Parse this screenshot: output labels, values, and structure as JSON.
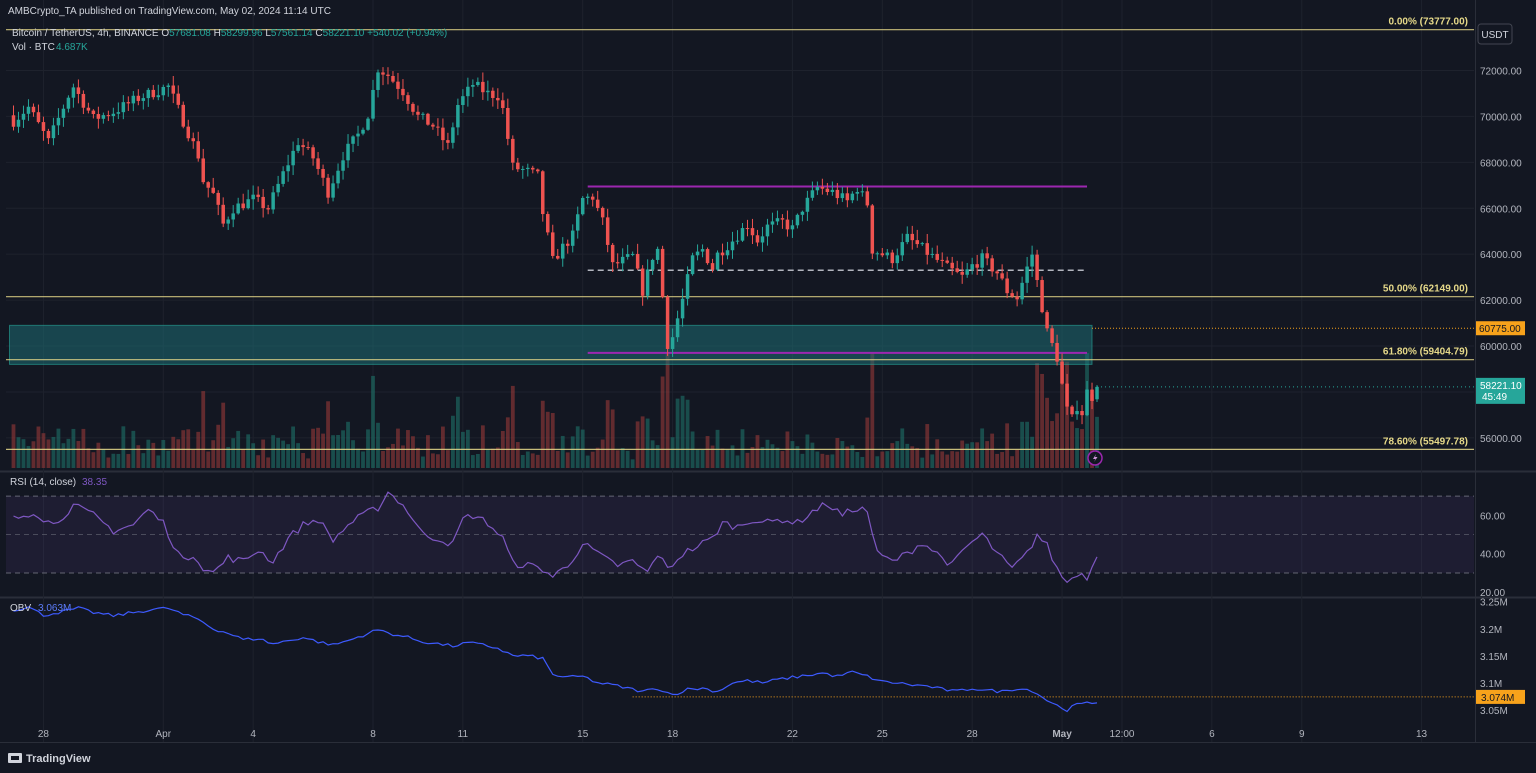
{
  "header": {
    "publisher": "AMBCrypto_TA published on TradingView.com, May 02, 2024 11:14 UTC",
    "symbol": "Bitcoin / TetherUS, 4h, BINANCE",
    "ohlc": [
      {
        "label": "O",
        "value": "57681.08"
      },
      {
        "label": "H",
        "value": "58299.96"
      },
      {
        "label": "L",
        "value": "57561.14"
      },
      {
        "label": "C",
        "value": "58221.10"
      }
    ],
    "change": "+540.02 (+0.94%)",
    "vol_label": "Vol · BTC",
    "vol_value": "4.687K",
    "currency": "USDT"
  },
  "footer": {
    "brand": "TradingView"
  },
  "colors": {
    "background": "#131722",
    "up": "#26a69a",
    "down": "#ef5350",
    "fib": "#e6d989",
    "range": "#9c27b0",
    "zone": "#1b5e66",
    "rsi": "#7e57c2",
    "obv": "#3d5afe",
    "price_tag": "#26a69a",
    "level_tag": "#f7a21b"
  },
  "chart_data": [
    {
      "type": "candlestick",
      "title": "",
      "price_scale": {
        "ylim": [
          54600,
          74200
        ],
        "ticks": [
          56000,
          58000,
          60000,
          62000,
          64000,
          66000,
          68000,
          70000,
          72000
        ]
      },
      "price_tick_labels": [
        "56000.00",
        "58000.00",
        "60000.00",
        "62000.00",
        "64000.00",
        "66000.00",
        "68000.00",
        "70000.00",
        "72000.00"
      ],
      "x_tick_labels": [
        {
          "label": "28",
          "index": 6
        },
        {
          "label": "Apr",
          "index": 30
        },
        {
          "label": "4",
          "index": 48
        },
        {
          "label": "8",
          "index": 72
        },
        {
          "label": "11",
          "index": 90
        },
        {
          "label": "15",
          "index": 114
        },
        {
          "label": "18",
          "index": 132
        },
        {
          "label": "22",
          "index": 156
        },
        {
          "label": "25",
          "index": 174
        },
        {
          "label": "28",
          "index": 192
        },
        {
          "label": "May",
          "index": 210
        },
        {
          "label": "12:00",
          "index": 222
        },
        {
          "label": "6",
          "index": 240
        },
        {
          "label": "9",
          "index": 258
        },
        {
          "label": "13",
          "index": 282
        }
      ],
      "x_range": [
        -1.5,
        292.5
      ],
      "close_path": [
        [
          0,
          69800
        ],
        [
          3,
          70400
        ],
        [
          7,
          68900
        ],
        [
          11,
          70900
        ],
        [
          12,
          71300
        ],
        [
          16,
          69900
        ],
        [
          20,
          70200
        ],
        [
          25,
          70800
        ],
        [
          31,
          71300
        ],
        [
          34,
          69800
        ],
        [
          37,
          68300
        ],
        [
          38,
          67200
        ],
        [
          40,
          66600
        ],
        [
          42,
          65300
        ],
        [
          44,
          66000
        ],
        [
          48,
          66400
        ],
        [
          51,
          66000
        ],
        [
          54,
          67500
        ],
        [
          57,
          68900
        ],
        [
          60,
          68200
        ],
        [
          63,
          66700
        ],
        [
          66,
          68300
        ],
        [
          69,
          69200
        ],
        [
          71,
          70100
        ],
        [
          73,
          72100
        ],
        [
          75,
          71800
        ],
        [
          78,
          71100
        ],
        [
          81,
          70000
        ],
        [
          84,
          69600
        ],
        [
          87,
          68700
        ],
        [
          89,
          70500
        ],
        [
          92,
          71400
        ],
        [
          95,
          71000
        ],
        [
          97,
          70900
        ],
        [
          98,
          70300
        ],
        [
          100,
          67800
        ],
        [
          103,
          67600
        ],
        [
          105,
          67400
        ],
        [
          106,
          65800
        ],
        [
          108,
          63700
        ],
        [
          110,
          64300
        ],
        [
          112,
          64800
        ],
        [
          114,
          66400
        ],
        [
          116,
          66500
        ],
        [
          118,
          65400
        ],
        [
          120,
          63500
        ],
        [
          124,
          63900
        ],
        [
          126,
          62400
        ],
        [
          128,
          63900
        ],
        [
          129,
          64200
        ],
        [
          131,
          60100
        ],
        [
          132,
          60400
        ],
        [
          134,
          62000
        ],
        [
          136,
          63800
        ],
        [
          138,
          64200
        ],
        [
          140,
          63400
        ],
        [
          141,
          64000
        ],
        [
          144,
          64600
        ],
        [
          147,
          65300
        ],
        [
          149,
          64600
        ],
        [
          151,
          65200
        ],
        [
          154,
          65400
        ],
        [
          156,
          65100
        ],
        [
          158,
          66000
        ],
        [
          161,
          66900
        ],
        [
          164,
          66700
        ],
        [
          167,
          66300
        ],
        [
          169,
          66900
        ],
        [
          171,
          66200
        ],
        [
          172,
          64200
        ],
        [
          176,
          63800
        ],
        [
          179,
          64700
        ],
        [
          181,
          64400
        ],
        [
          184,
          63900
        ],
        [
          187,
          63400
        ],
        [
          190,
          63000
        ],
        [
          192,
          63500
        ],
        [
          194,
          63800
        ],
        [
          197,
          63200
        ],
        [
          199,
          62400
        ],
        [
          201,
          62100
        ],
        [
          203,
          63400
        ],
        [
          204,
          64000
        ],
        [
          205,
          62800
        ],
        [
          207,
          60600
        ],
        [
          209,
          59500
        ],
        [
          210,
          58300
        ],
        [
          211,
          57200
        ],
        [
          212,
          56800
        ],
        [
          213,
          57400
        ],
        [
          214,
          57100
        ],
        [
          215,
          58000
        ],
        [
          216,
          57800
        ],
        [
          217,
          58221
        ]
      ],
      "last_price": {
        "label": "58221.10",
        "countdown": "45:49"
      },
      "fib_levels": [
        {
          "label": "0.00% (73777.00)",
          "value": 73777.0
        },
        {
          "label": "50.00% (62149.00)",
          "value": 62149.0
        },
        {
          "label": "61.80% (59404.79)",
          "value": 59404.79
        },
        {
          "label": "78.60% (55497.78)",
          "value": 55497.78
        }
      ],
      "level_tag": {
        "label": "60775.00",
        "value": 60775.0
      },
      "range_box": {
        "top": 66950,
        "mid": 63300,
        "bottom": 59700,
        "start_index": 115,
        "end_index": 215
      },
      "support_zone": {
        "top": 60900,
        "bottom": 59200,
        "start_index": 0,
        "end_index": 216
      },
      "volume": {
        "scale": "relative",
        "last": 4.687
      }
    },
    {
      "type": "line",
      "title": "",
      "name": "RSI (14, close)",
      "value_label": "38.35",
      "ylim": [
        18,
        82
      ],
      "ticks": [
        20,
        40,
        60
      ],
      "tick_labels": [
        "20.00",
        "40.00",
        "60.00"
      ],
      "bands": [
        30,
        50,
        70
      ],
      "path": [
        [
          0,
          58
        ],
        [
          4,
          62
        ],
        [
          8,
          55
        ],
        [
          12,
          65
        ],
        [
          16,
          60
        ],
        [
          20,
          52
        ],
        [
          24,
          55
        ],
        [
          27,
          63
        ],
        [
          30,
          56
        ],
        [
          32,
          45
        ],
        [
          34,
          36
        ],
        [
          36,
          40
        ],
        [
          38,
          33
        ],
        [
          40,
          30
        ],
        [
          43,
          38
        ],
        [
          46,
          36
        ],
        [
          49,
          42
        ],
        [
          52,
          36
        ],
        [
          55,
          48
        ],
        [
          58,
          55
        ],
        [
          61,
          58
        ],
        [
          64,
          47
        ],
        [
          67,
          55
        ],
        [
          70,
          60
        ],
        [
          73,
          64
        ],
        [
          75,
          72
        ],
        [
          77,
          68
        ],
        [
          79,
          62
        ],
        [
          82,
          50
        ],
        [
          85,
          48
        ],
        [
          88,
          45
        ],
        [
          90,
          58
        ],
        [
          92,
          60
        ],
        [
          95,
          56
        ],
        [
          98,
          48
        ],
        [
          100,
          35
        ],
        [
          103,
          34
        ],
        [
          106,
          32
        ],
        [
          108,
          28
        ],
        [
          111,
          34
        ],
        [
          114,
          45
        ],
        [
          116,
          42
        ],
        [
          118,
          38
        ],
        [
          121,
          34
        ],
        [
          124,
          36
        ],
        [
          127,
          30
        ],
        [
          129,
          40
        ],
        [
          131,
          32
        ],
        [
          134,
          40
        ],
        [
          137,
          44
        ],
        [
          140,
          48
        ],
        [
          142,
          56
        ],
        [
          145,
          54
        ],
        [
          148,
          58
        ],
        [
          151,
          56
        ],
        [
          154,
          58
        ],
        [
          157,
          56
        ],
        [
          160,
          62
        ],
        [
          163,
          66
        ],
        [
          166,
          60
        ],
        [
          169,
          64
        ],
        [
          171,
          62
        ],
        [
          173,
          40
        ],
        [
          176,
          36
        ],
        [
          179,
          40
        ],
        [
          182,
          46
        ],
        [
          185,
          40
        ],
        [
          188,
          34
        ],
        [
          191,
          44
        ],
        [
          194,
          50
        ],
        [
          197,
          40
        ],
        [
          200,
          32
        ],
        [
          203,
          40
        ],
        [
          205,
          50
        ],
        [
          207,
          44
        ],
        [
          209,
          32
        ],
        [
          211,
          25
        ],
        [
          213,
          30
        ],
        [
          215,
          28
        ],
        [
          217,
          38.35
        ]
      ]
    },
    {
      "type": "line",
      "title": "",
      "name": "OBV",
      "value_label": "3.063M",
      "ylim": [
        3.035,
        3.255
      ],
      "ticks": [
        3.05,
        3.1,
        3.15,
        3.2,
        3.25
      ],
      "tick_labels": [
        "3.05M",
        "3.1M",
        "3.15M",
        "3.2M",
        "3.25M"
      ],
      "level": {
        "label": "3.074M",
        "value": 3.074
      },
      "path": [
        [
          0,
          3.235
        ],
        [
          3,
          3.24
        ],
        [
          6,
          3.225
        ],
        [
          10,
          3.232
        ],
        [
          13,
          3.238
        ],
        [
          16,
          3.23
        ],
        [
          20,
          3.224
        ],
        [
          24,
          3.23
        ],
        [
          28,
          3.236
        ],
        [
          31,
          3.238
        ],
        [
          34,
          3.226
        ],
        [
          37,
          3.218
        ],
        [
          40,
          3.2
        ],
        [
          43,
          3.192
        ],
        [
          46,
          3.18
        ],
        [
          49,
          3.182
        ],
        [
          52,
          3.172
        ],
        [
          55,
          3.178
        ],
        [
          58,
          3.184
        ],
        [
          61,
          3.176
        ],
        [
          64,
          3.17
        ],
        [
          67,
          3.178
        ],
        [
          70,
          3.188
        ],
        [
          73,
          3.198
        ],
        [
          76,
          3.19
        ],
        [
          79,
          3.184
        ],
        [
          82,
          3.176
        ],
        [
          85,
          3.172
        ],
        [
          88,
          3.168
        ],
        [
          91,
          3.174
        ],
        [
          94,
          3.17
        ],
        [
          97,
          3.164
        ],
        [
          100,
          3.15
        ],
        [
          103,
          3.15
        ],
        [
          106,
          3.145
        ],
        [
          108,
          3.115
        ],
        [
          111,
          3.11
        ],
        [
          114,
          3.112
        ],
        [
          117,
          3.1
        ],
        [
          120,
          3.096
        ],
        [
          123,
          3.09
        ],
        [
          126,
          3.084
        ],
        [
          129,
          3.09
        ],
        [
          132,
          3.078
        ],
        [
          135,
          3.088
        ],
        [
          138,
          3.09
        ],
        [
          141,
          3.084
        ],
        [
          144,
          3.1
        ],
        [
          147,
          3.104
        ],
        [
          150,
          3.1
        ],
        [
          153,
          3.106
        ],
        [
          156,
          3.11
        ],
        [
          159,
          3.114
        ],
        [
          162,
          3.118
        ],
        [
          165,
          3.112
        ],
        [
          168,
          3.12
        ],
        [
          171,
          3.112
        ],
        [
          174,
          3.102
        ],
        [
          177,
          3.1
        ],
        [
          180,
          3.096
        ],
        [
          183,
          3.094
        ],
        [
          186,
          3.088
        ],
        [
          189,
          3.084
        ],
        [
          192,
          3.09
        ],
        [
          195,
          3.086
        ],
        [
          198,
          3.084
        ],
        [
          201,
          3.09
        ],
        [
          204,
          3.086
        ],
        [
          207,
          3.068
        ],
        [
          209,
          3.058
        ],
        [
          211,
          3.05
        ],
        [
          213,
          3.06
        ],
        [
          215,
          3.062
        ],
        [
          217,
          3.063
        ]
      ]
    }
  ]
}
